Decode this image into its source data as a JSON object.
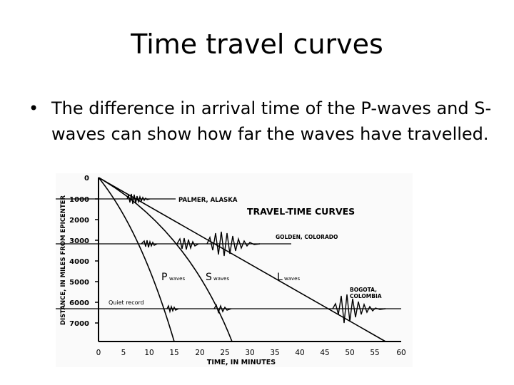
{
  "slide": {
    "title": "Time travel curves",
    "bullet": "The difference in arrival time of the P-waves and S-waves can show how far the waves have travelled."
  },
  "figure": {
    "heading": "TRAVEL-TIME CURVES",
    "y_axis_label": "DISTANCE, IN MILES FROM EPICENTER",
    "x_axis_label": "TIME, IN MINUTES",
    "y_ticks": [
      "0",
      "1000",
      "2000",
      "3000",
      "4000",
      "5000",
      "6000",
      "7000"
    ],
    "x_ticks": [
      "0",
      "5",
      "10",
      "15",
      "20",
      "25",
      "30",
      "35",
      "40",
      "45",
      "50",
      "55",
      "60"
    ],
    "stations": [
      "PALMER, ALASKA",
      "GOLDEN, COLORADO",
      "BOGOTA,",
      "COLOMBIA"
    ],
    "quiet_record": "Quiet record",
    "wave_labels": {
      "p_letter": "P",
      "p_word": "waves",
      "s_letter": "S",
      "s_word": "waves",
      "l_letter": "L",
      "l_word": "waves"
    }
  }
}
